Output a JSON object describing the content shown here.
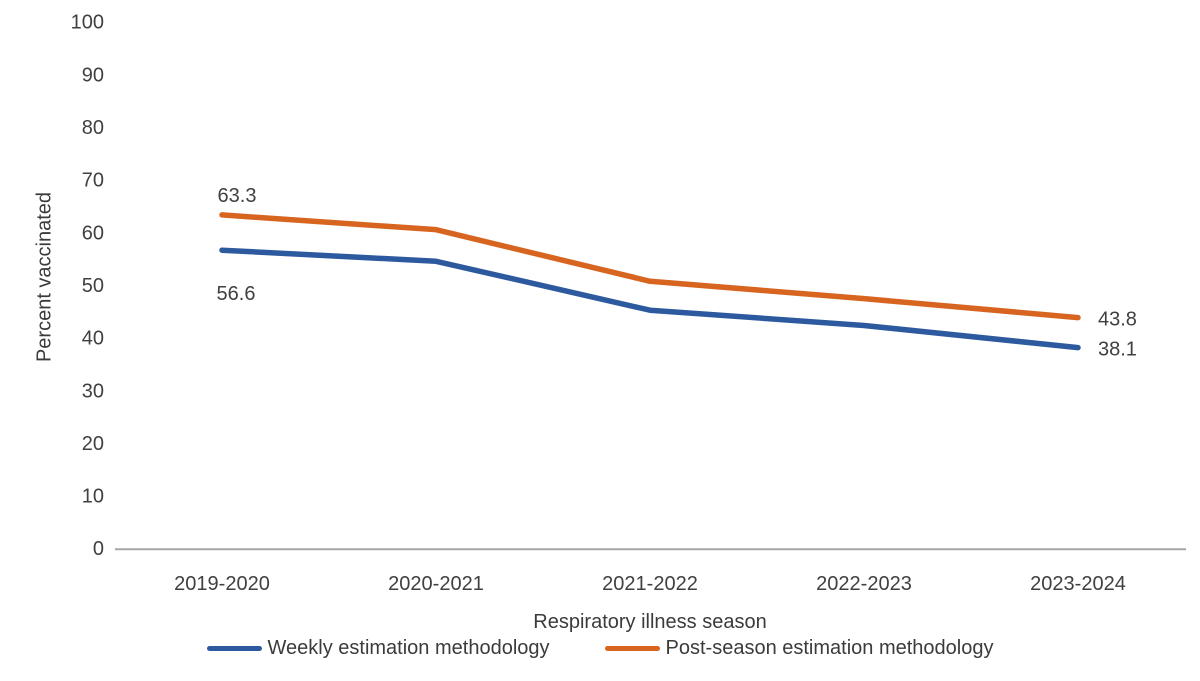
{
  "chart_data": {
    "type": "line",
    "title": "",
    "xlabel": "Respiratory illness season",
    "ylabel": "Percent vaccinated",
    "categories": [
      "2019-2020",
      "2020-2021",
      "2021-2022",
      "2022-2023",
      "2023-2024"
    ],
    "series": [
      {
        "name": "Weekly estimation methodology",
        "color": "#2D5A9E",
        "values": [
          56.6,
          54.5,
          45.2,
          42.3,
          38.1
        ]
      },
      {
        "name": "Post-season estimation methodology",
        "color": "#D7651F",
        "values": [
          63.3,
          60.5,
          50.7,
          47.4,
          43.8
        ]
      }
    ],
    "ylim": [
      0,
      100
    ],
    "ytick_step": 10,
    "yticks": [
      0,
      10,
      20,
      30,
      40,
      50,
      60,
      70,
      80,
      90,
      100
    ],
    "grid": false,
    "legend_position": "bottom",
    "point_labels": [
      {
        "series": 1,
        "index": 0,
        "text": "63.3",
        "placement": "above-start"
      },
      {
        "series": 0,
        "index": 0,
        "text": "56.6",
        "placement": "below-start"
      },
      {
        "series": 1,
        "index": 4,
        "text": "43.8",
        "placement": "right-of-end"
      },
      {
        "series": 0,
        "index": 4,
        "text": "38.1",
        "placement": "right-of-end"
      }
    ]
  },
  "colors": {
    "axis_line": "#A6A6A6",
    "text": "#404040",
    "background": "#FFFFFF"
  }
}
